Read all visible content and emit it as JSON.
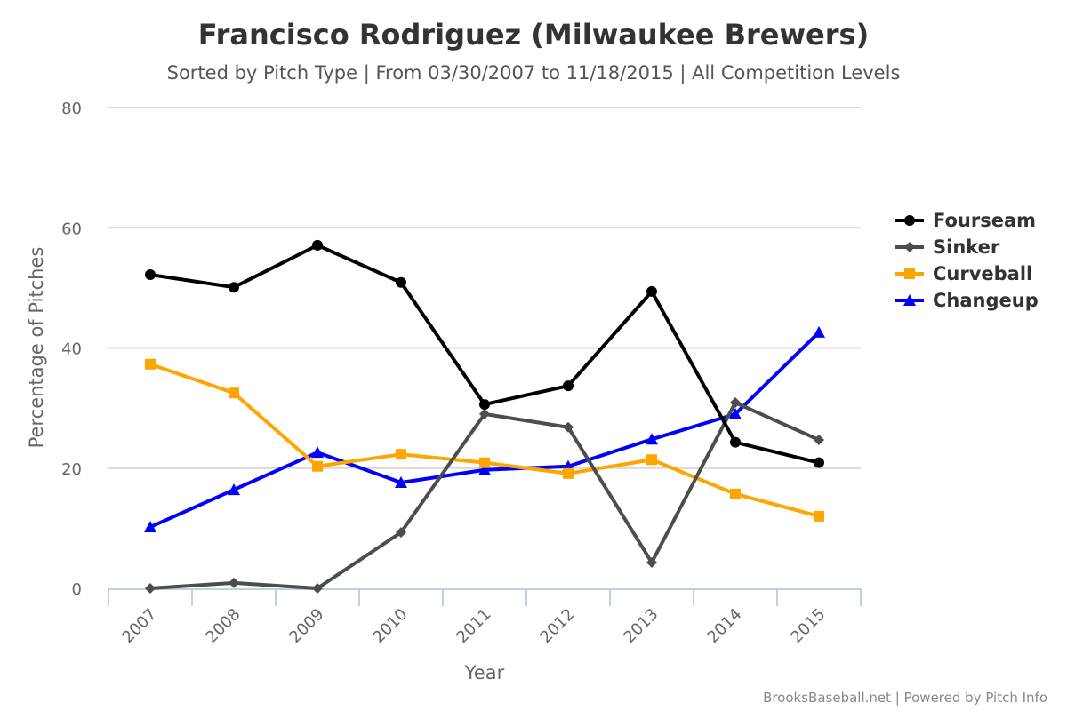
{
  "chart_data": {
    "type": "line",
    "title": "Francisco Rodriguez (Milwaukee Brewers)",
    "subtitle": "Sorted by Pitch Type | From 03/30/2007 to 11/18/2015 | All Competition Levels",
    "xlabel": "Year",
    "ylabel": "Percentage of Pitches",
    "ylim": [
      0,
      80
    ],
    "yticks": [
      0,
      20,
      40,
      60,
      80
    ],
    "categories": [
      "2007",
      "2008",
      "2009",
      "2010",
      "2011",
      "2012",
      "2013",
      "2014",
      "2015"
    ],
    "grid": true,
    "legend_position": "right",
    "series": [
      {
        "name": "Fourseam",
        "color": "#000000",
        "marker": "circle",
        "values": [
          52.2,
          50.1,
          57.1,
          50.9,
          30.6,
          33.7,
          49.4,
          24.3,
          20.9
        ]
      },
      {
        "name": "Sinker",
        "color": "#4d4d4d",
        "marker": "diamond",
        "values": [
          0.0,
          0.9,
          0.0,
          9.3,
          29.0,
          26.8,
          4.3,
          30.9,
          24.7
        ]
      },
      {
        "name": "Curveball",
        "color": "#ffa500",
        "marker": "square",
        "values": [
          37.3,
          32.5,
          20.3,
          22.3,
          20.9,
          19.1,
          21.4,
          15.7,
          12.0
        ]
      },
      {
        "name": "Changeup",
        "color": "#0000ff",
        "marker": "triangle",
        "values": [
          10.2,
          16.4,
          22.6,
          17.6,
          19.7,
          20.3,
          24.8,
          29.0,
          42.6
        ]
      }
    ],
    "credit": "BrooksBaseball.net | Powered by Pitch Info"
  }
}
